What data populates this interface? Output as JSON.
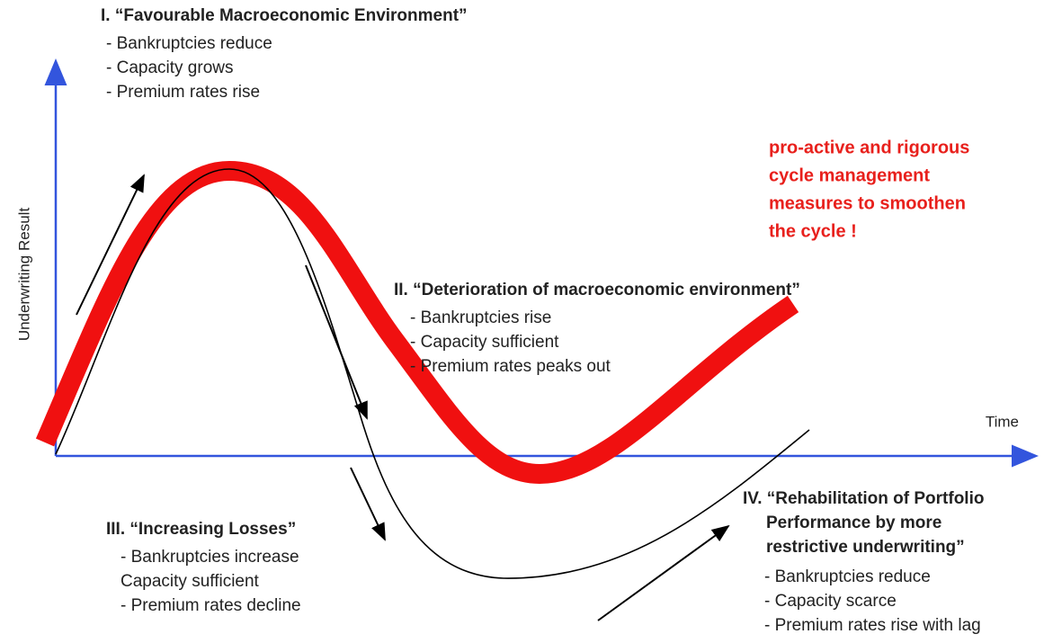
{
  "y_axis_label": "Underwriting Result",
  "x_axis_label": "Time",
  "note": [
    "pro-active and rigorous",
    "cycle management",
    "measures to smoothen",
    "the cycle !"
  ],
  "phases": [
    {
      "title": [
        "I. “Favourable Macroeconomic Environment”"
      ],
      "items": [
        "- Bankruptcies reduce",
        "- Capacity grows",
        "- Premium rates rise"
      ]
    },
    {
      "title": [
        "II. “Deterioration of macroeconomic environment”"
      ],
      "items": [
        "- Bankruptcies rise",
        "- Capacity sufficient",
        "- Premium rates peaks out"
      ]
    },
    {
      "title": [
        "III. “Increasing Losses”"
      ],
      "items": [
        "- Bankruptcies increase",
        "Capacity sufficient",
        "- Premium rates decline"
      ]
    },
    {
      "title": [
        "IV. “Rehabilitation of Portfolio",
        "Performance by more",
        "restrictive underwriting”"
      ],
      "items": [
        "- Bankruptcies reduce",
        "- Capacity scarce",
        "- Premium rates rise with lag"
      ]
    }
  ]
}
